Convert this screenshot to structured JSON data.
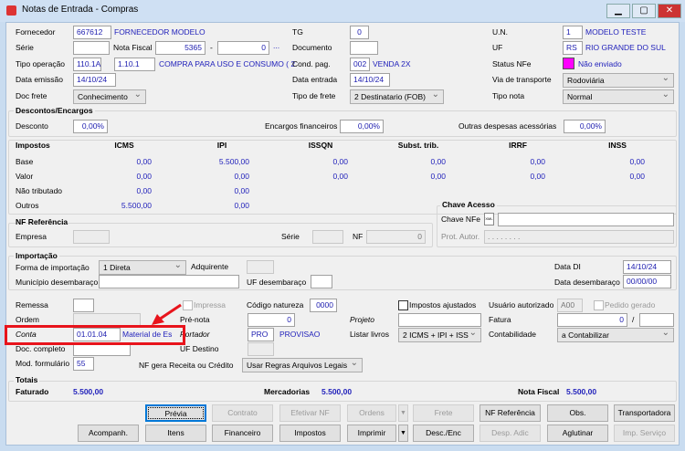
{
  "window": {
    "title": "Notas de Entrada - Compras",
    "minimize": "▁",
    "maximize": "▢",
    "close": "✕"
  },
  "header": {
    "fornecedor": {
      "label": "Fornecedor",
      "code": "667612",
      "name": "FORNECEDOR MODELO"
    },
    "serie": {
      "label": "Série",
      "value": ""
    },
    "nota_fiscal": {
      "label": "Nota Fiscal",
      "number": "5365",
      "sep": "-",
      "suffix": "0",
      "lookup": "..."
    },
    "tipo_operacao": {
      "label": "Tipo operação",
      "code": "110.1A",
      "cfop": "1.10.1",
      "desc": "COMPRA PARA USO E CONSUMO ( 2"
    },
    "data_emissao": {
      "label": "Data emissão",
      "value": "14/10/24"
    },
    "doc_frete": {
      "label": "Doc frete",
      "value": "Conhecimento"
    },
    "tg": {
      "label": "TG",
      "value": "0"
    },
    "documento": {
      "label": "Documento",
      "value": ""
    },
    "cond_pag": {
      "label": "Cond. pag.",
      "code": "002",
      "desc": "VENDA 2X"
    },
    "data_entrada": {
      "label": "Data entrada",
      "value": "14/10/24"
    },
    "tipo_frete": {
      "label": "Tipo de frete",
      "value": "2 Destinatario (FOB)"
    },
    "un": {
      "label": "U.N.",
      "code": "1",
      "desc": "MODELO TESTE"
    },
    "uf": {
      "label": "UF",
      "code": "RS",
      "desc": "RIO GRANDE DO SUL"
    },
    "status_nfe": {
      "label": "Status NFe",
      "value": "Não enviado",
      "color": "#ff00ff"
    },
    "via_transporte": {
      "label": "Via de transporte",
      "value": "Rodoviária"
    },
    "tipo_nota": {
      "label": "Tipo nota",
      "value": "Normal"
    }
  },
  "descontos": {
    "title": "Descontos/Encargos",
    "desconto_label": "Desconto",
    "desconto": "0,00%",
    "encargos_label": "Encargos financeiros",
    "encargos": "0,00%",
    "outras_label": "Outras despesas acessórias",
    "outras": "0,00%"
  },
  "impostos": {
    "title": "Impostos",
    "columns": [
      "ICMS",
      "IPI",
      "ISSQN",
      "Subst. trib.",
      "IRRF",
      "INSS"
    ],
    "rows": [
      {
        "label": "Base",
        "values": [
          "0,00",
          "5.500,00",
          "0,00",
          "0,00",
          "0,00",
          "0,00"
        ]
      },
      {
        "label": "Valor",
        "values": [
          "0,00",
          "0,00",
          "0,00",
          "0,00",
          "0,00",
          "0,00"
        ]
      },
      {
        "label": "Não tributado",
        "values": [
          "0,00",
          "0,00"
        ]
      },
      {
        "label": "Outros",
        "values": [
          "5.500,00",
          "0,00"
        ]
      }
    ]
  },
  "chave": {
    "title": "Chave Acesso",
    "chave_label": "Chave NFe",
    "chave": "",
    "prot_label": "Prot. Autor.",
    "prot": ". . . . . . . ."
  },
  "nf_ref": {
    "title": "NF Referência",
    "empresa_label": "Empresa",
    "serie_label": "Série",
    "nf_label": "NF",
    "nf": "0"
  },
  "importacao": {
    "title": "Importação",
    "forma_label": "Forma de importação",
    "forma": "1 Direta",
    "adquirente_label": "Adquirente",
    "data_di_label": "Data DI",
    "data_di": "14/10/24",
    "municipio_label": "Município desembaraço",
    "uf_label": "UF desembaraço",
    "data_desemb_label": "Data desembaraço",
    "data_desemb": "00/00/00"
  },
  "misc": {
    "remessa": "Remessa",
    "impressa": "Impressa",
    "codigo_natureza_label": "Código natureza",
    "codigo_natureza": "0000",
    "impostos_ajustados": "Impostos ajustados",
    "usuario_label": "Usuário autorizado",
    "usuario": "A00",
    "pedido_gerado": "Pedido gerado",
    "ordem": "Ordem",
    "pre_nota_label": "Pré-nota",
    "pre_nota": "0",
    "projeto": "Projeto",
    "fatura_label": "Fatura",
    "fatura": "0",
    "fatura_sep": "/",
    "conta_label": "Conta",
    "conta": "01.01.04",
    "conta_desc": "Material de Es",
    "portador_label": "Portador",
    "portador": "PRO",
    "portador_desc": "PROVISAO",
    "listar_label": "Listar livros",
    "listar": "2 ICMS + IPI + ISS",
    "contab_label": "Contabilidade",
    "contab": "a Contabilizar",
    "doc_completo": "Doc. completo",
    "uf_destino": "UF Destino",
    "mod_label": "Mod. formulário",
    "mod": "55",
    "nf_gera_label": "NF gera Receita ou Crédito",
    "nf_gera": "Usar Regras Arquivos Legais",
    "highlight_color": "#e8141c"
  },
  "totais": {
    "title": "Totais",
    "faturado_label": "Faturado",
    "faturado": "5.500,00",
    "mercadorias_label": "Mercadorias",
    "mercadorias": "5.500,00",
    "nf_label": "Nota Fiscal",
    "nf": "5.500,00"
  },
  "buttons": {
    "row1": [
      "Prévia",
      "Contrato",
      "Efetivar NF",
      "Ordens",
      "Frete",
      "NF Referência",
      "Obs.",
      "Transportadora"
    ],
    "row2": [
      "Acompanh.",
      "Itens",
      "Financeiro",
      "Impostos",
      "Imprimir",
      "Desc./Enc",
      "Desp. Adic",
      "Aglutinar",
      "Imp. Serviço"
    ]
  }
}
